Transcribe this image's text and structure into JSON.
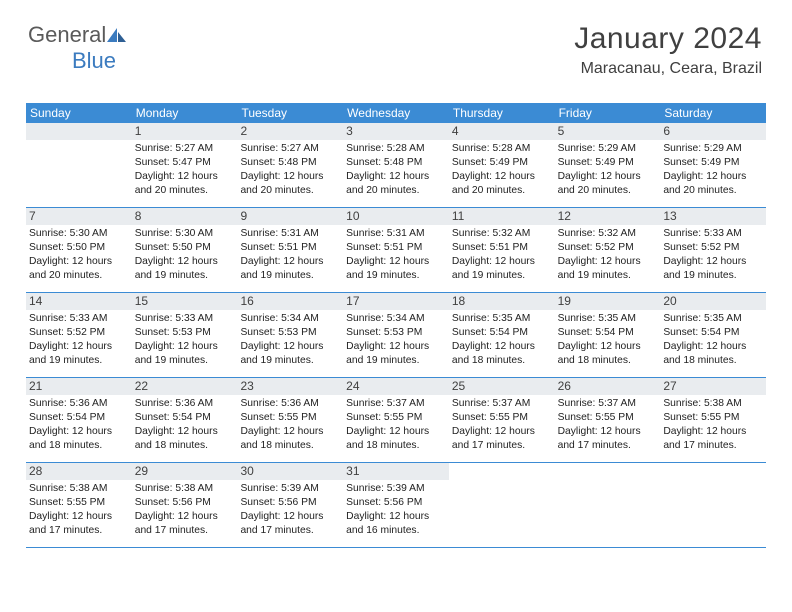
{
  "logo": {
    "text1": "General",
    "text2": "Blue"
  },
  "title": "January 2024",
  "location": "Maracanau, Ceara, Brazil",
  "colors": {
    "header_blue": "#3b8bd4",
    "daynum_bg": "#e9ecef",
    "text": "#404040",
    "logo_gray": "#5a5a5a",
    "logo_blue": "#3b7bbf",
    "background": "#ffffff"
  },
  "typography": {
    "title_fontsize": 30,
    "location_fontsize": 16,
    "weekday_fontsize": 12,
    "daynum_fontsize": 12,
    "body_fontsize": 10.3
  },
  "weekdays": [
    "Sunday",
    "Monday",
    "Tuesday",
    "Wednesday",
    "Thursday",
    "Friday",
    "Saturday"
  ],
  "weeks": [
    [
      {
        "num": "",
        "sunrise": "",
        "sunset": "",
        "daylight": ""
      },
      {
        "num": "1",
        "sunrise": "Sunrise: 5:27 AM",
        "sunset": "Sunset: 5:47 PM",
        "daylight": "Daylight: 12 hours and 20 minutes."
      },
      {
        "num": "2",
        "sunrise": "Sunrise: 5:27 AM",
        "sunset": "Sunset: 5:48 PM",
        "daylight": "Daylight: 12 hours and 20 minutes."
      },
      {
        "num": "3",
        "sunrise": "Sunrise: 5:28 AM",
        "sunset": "Sunset: 5:48 PM",
        "daylight": "Daylight: 12 hours and 20 minutes."
      },
      {
        "num": "4",
        "sunrise": "Sunrise: 5:28 AM",
        "sunset": "Sunset: 5:49 PM",
        "daylight": "Daylight: 12 hours and 20 minutes."
      },
      {
        "num": "5",
        "sunrise": "Sunrise: 5:29 AM",
        "sunset": "Sunset: 5:49 PM",
        "daylight": "Daylight: 12 hours and 20 minutes."
      },
      {
        "num": "6",
        "sunrise": "Sunrise: 5:29 AM",
        "sunset": "Sunset: 5:49 PM",
        "daylight": "Daylight: 12 hours and 20 minutes."
      }
    ],
    [
      {
        "num": "7",
        "sunrise": "Sunrise: 5:30 AM",
        "sunset": "Sunset: 5:50 PM",
        "daylight": "Daylight: 12 hours and 20 minutes."
      },
      {
        "num": "8",
        "sunrise": "Sunrise: 5:30 AM",
        "sunset": "Sunset: 5:50 PM",
        "daylight": "Daylight: 12 hours and 19 minutes."
      },
      {
        "num": "9",
        "sunrise": "Sunrise: 5:31 AM",
        "sunset": "Sunset: 5:51 PM",
        "daylight": "Daylight: 12 hours and 19 minutes."
      },
      {
        "num": "10",
        "sunrise": "Sunrise: 5:31 AM",
        "sunset": "Sunset: 5:51 PM",
        "daylight": "Daylight: 12 hours and 19 minutes."
      },
      {
        "num": "11",
        "sunrise": "Sunrise: 5:32 AM",
        "sunset": "Sunset: 5:51 PM",
        "daylight": "Daylight: 12 hours and 19 minutes."
      },
      {
        "num": "12",
        "sunrise": "Sunrise: 5:32 AM",
        "sunset": "Sunset: 5:52 PM",
        "daylight": "Daylight: 12 hours and 19 minutes."
      },
      {
        "num": "13",
        "sunrise": "Sunrise: 5:33 AM",
        "sunset": "Sunset: 5:52 PM",
        "daylight": "Daylight: 12 hours and 19 minutes."
      }
    ],
    [
      {
        "num": "14",
        "sunrise": "Sunrise: 5:33 AM",
        "sunset": "Sunset: 5:52 PM",
        "daylight": "Daylight: 12 hours and 19 minutes."
      },
      {
        "num": "15",
        "sunrise": "Sunrise: 5:33 AM",
        "sunset": "Sunset: 5:53 PM",
        "daylight": "Daylight: 12 hours and 19 minutes."
      },
      {
        "num": "16",
        "sunrise": "Sunrise: 5:34 AM",
        "sunset": "Sunset: 5:53 PM",
        "daylight": "Daylight: 12 hours and 19 minutes."
      },
      {
        "num": "17",
        "sunrise": "Sunrise: 5:34 AM",
        "sunset": "Sunset: 5:53 PM",
        "daylight": "Daylight: 12 hours and 19 minutes."
      },
      {
        "num": "18",
        "sunrise": "Sunrise: 5:35 AM",
        "sunset": "Sunset: 5:54 PM",
        "daylight": "Daylight: 12 hours and 18 minutes."
      },
      {
        "num": "19",
        "sunrise": "Sunrise: 5:35 AM",
        "sunset": "Sunset: 5:54 PM",
        "daylight": "Daylight: 12 hours and 18 minutes."
      },
      {
        "num": "20",
        "sunrise": "Sunrise: 5:35 AM",
        "sunset": "Sunset: 5:54 PM",
        "daylight": "Daylight: 12 hours and 18 minutes."
      }
    ],
    [
      {
        "num": "21",
        "sunrise": "Sunrise: 5:36 AM",
        "sunset": "Sunset: 5:54 PM",
        "daylight": "Daylight: 12 hours and 18 minutes."
      },
      {
        "num": "22",
        "sunrise": "Sunrise: 5:36 AM",
        "sunset": "Sunset: 5:54 PM",
        "daylight": "Daylight: 12 hours and 18 minutes."
      },
      {
        "num": "23",
        "sunrise": "Sunrise: 5:36 AM",
        "sunset": "Sunset: 5:55 PM",
        "daylight": "Daylight: 12 hours and 18 minutes."
      },
      {
        "num": "24",
        "sunrise": "Sunrise: 5:37 AM",
        "sunset": "Sunset: 5:55 PM",
        "daylight": "Daylight: 12 hours and 18 minutes."
      },
      {
        "num": "25",
        "sunrise": "Sunrise: 5:37 AM",
        "sunset": "Sunset: 5:55 PM",
        "daylight": "Daylight: 12 hours and 17 minutes."
      },
      {
        "num": "26",
        "sunrise": "Sunrise: 5:37 AM",
        "sunset": "Sunset: 5:55 PM",
        "daylight": "Daylight: 12 hours and 17 minutes."
      },
      {
        "num": "27",
        "sunrise": "Sunrise: 5:38 AM",
        "sunset": "Sunset: 5:55 PM",
        "daylight": "Daylight: 12 hours and 17 minutes."
      }
    ],
    [
      {
        "num": "28",
        "sunrise": "Sunrise: 5:38 AM",
        "sunset": "Sunset: 5:55 PM",
        "daylight": "Daylight: 12 hours and 17 minutes."
      },
      {
        "num": "29",
        "sunrise": "Sunrise: 5:38 AM",
        "sunset": "Sunset: 5:56 PM",
        "daylight": "Daylight: 12 hours and 17 minutes."
      },
      {
        "num": "30",
        "sunrise": "Sunrise: 5:39 AM",
        "sunset": "Sunset: 5:56 PM",
        "daylight": "Daylight: 12 hours and 17 minutes."
      },
      {
        "num": "31",
        "sunrise": "Sunrise: 5:39 AM",
        "sunset": "Sunset: 5:56 PM",
        "daylight": "Daylight: 12 hours and 16 minutes."
      },
      {
        "num": "",
        "sunrise": "",
        "sunset": "",
        "daylight": ""
      },
      {
        "num": "",
        "sunrise": "",
        "sunset": "",
        "daylight": ""
      },
      {
        "num": "",
        "sunrise": "",
        "sunset": "",
        "daylight": ""
      }
    ]
  ]
}
